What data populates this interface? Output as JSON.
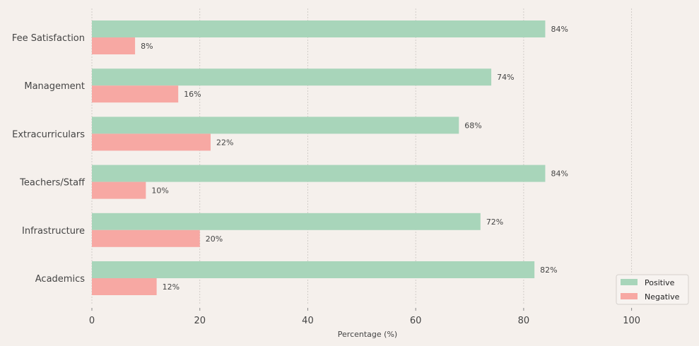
{
  "chart_data": {
    "type": "bar",
    "orientation": "horizontal",
    "categories": [
      "Academics",
      "Infrastructure",
      "Teachers/Staff",
      "Extracurriculars",
      "Management",
      "Fee Satisfaction"
    ],
    "series": [
      {
        "name": "Positive",
        "values": [
          82,
          72,
          84,
          68,
          74,
          84
        ],
        "color": "#a8d5ba"
      },
      {
        "name": "Negative",
        "values": [
          12,
          20,
          10,
          22,
          16,
          8
        ],
        "color": "#f7a8a3"
      }
    ],
    "value_suffix": "%",
    "xlabel": "Percentage (%)",
    "ylabel": "",
    "xlim": [
      0,
      110
    ],
    "xticks": [
      0,
      20,
      40,
      60,
      80,
      100
    ],
    "grid": "vertical dashed",
    "legend_position": "bottom-right",
    "background": "#f5f0ec"
  }
}
